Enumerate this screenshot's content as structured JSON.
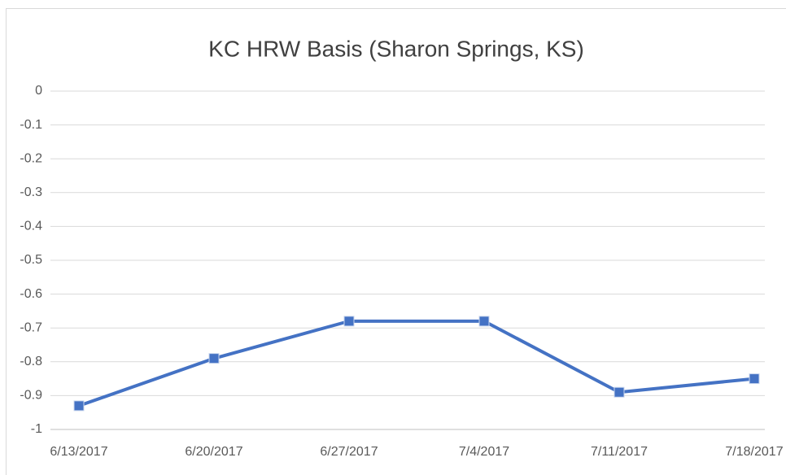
{
  "chart_data": {
    "type": "line",
    "title": "KC HRW Basis  (Sharon Springs, KS)",
    "categories": [
      "6/13/2017",
      "6/20/2017",
      "6/27/2017",
      "7/4/2017",
      "7/11/2017",
      "7/18/2017"
    ],
    "series": [
      {
        "name": "KC HRW Basis",
        "color": "#4472c4",
        "values": [
          -0.93,
          -0.79,
          -0.68,
          -0.68,
          -0.89,
          -0.85
        ]
      }
    ],
    "ylim": [
      -1,
      0
    ],
    "yticks": [
      0,
      -0.1,
      -0.2,
      -0.3,
      -0.4,
      -0.5,
      -0.6,
      -0.7,
      -0.8,
      -0.9,
      -1
    ],
    "grid": true
  }
}
